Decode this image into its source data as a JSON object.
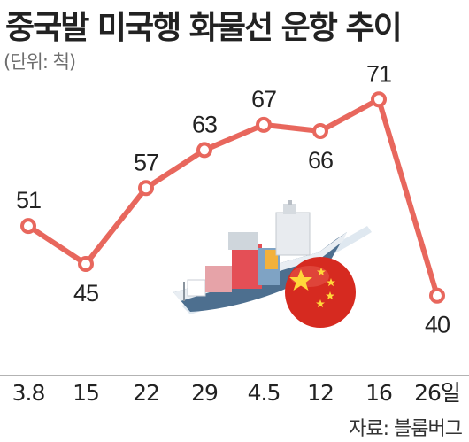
{
  "chart_data": {
    "type": "line",
    "title": "중국발 미국행 화물선 운항 추이",
    "unit_label": "(단위: 척)",
    "categories": [
      "3.8",
      "15",
      "22",
      "29",
      "4.5",
      "12",
      "16",
      "26일"
    ],
    "values": [
      51,
      45,
      57,
      63,
      67,
      66,
      71,
      40
    ],
    "ylim": [
      38,
      73
    ],
    "grid": false,
    "line_color": "#e8675d",
    "source": "자료: 블룸버그"
  }
}
